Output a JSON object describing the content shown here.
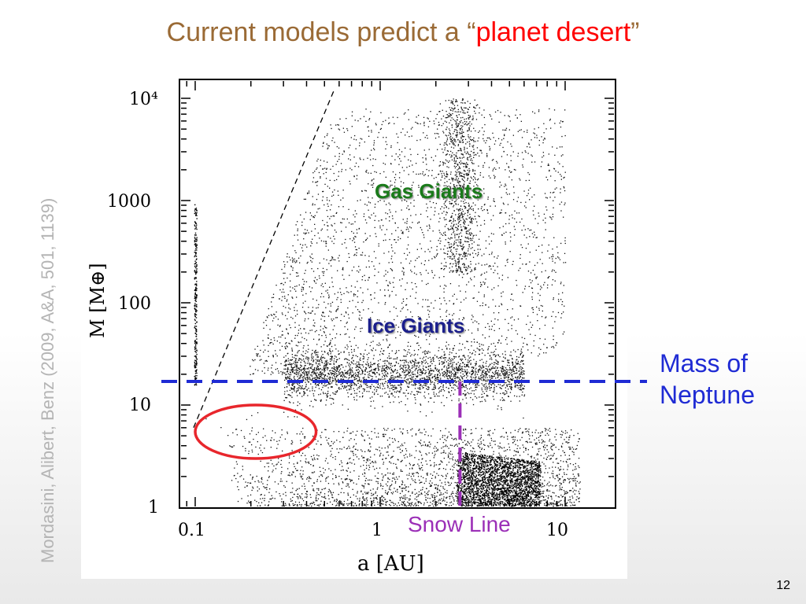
{
  "slide": {
    "title_prefix": "Current models predict a “",
    "title_highlight": "planet desert",
    "title_suffix": "”",
    "side_credit": "Mordasini, Alibert, Benz (2009, A&A, 501, 1139)",
    "page_number": "12"
  },
  "annotations": {
    "gas_giants": "Gas Giants",
    "ice_giants": "Ice Giants",
    "neptune_line1": "Mass of",
    "neptune_line2": "Neptune",
    "snow_line": "Snow Line",
    "colors": {
      "neptune_line": "#1f2bd4",
      "snow_line": "#9b2fb7",
      "desert_ellipse": "#e8262c",
      "gas_text": "#1a7a1a",
      "ice_text": "#1b1f8c",
      "title": "#9a6a35",
      "title_highlight": "#ff0000"
    }
  },
  "chart_data": {
    "type": "scatter",
    "title": "",
    "xlabel": "a [AU]",
    "ylabel": "M [M⊕]",
    "xscale": "log",
    "yscale": "log",
    "xlim": [
      0.08,
      20
    ],
    "ylim": [
      1,
      15000
    ],
    "x_ticks": [
      {
        "value": 0.1,
        "label": "0.1"
      },
      {
        "value": 1,
        "label": "1"
      },
      {
        "value": 10,
        "label": "10"
      }
    ],
    "y_ticks": [
      {
        "value": 1,
        "label": "1"
      },
      {
        "value": 10,
        "label": "10"
      },
      {
        "value": 100,
        "label": "100"
      },
      {
        "value": 1000,
        "label": "1000"
      },
      {
        "value": 10000,
        "label": "10⁴"
      }
    ],
    "reference_lines": [
      {
        "orientation": "horizontal",
        "value": 17,
        "style": "dashed",
        "label": "Mass of Neptune"
      },
      {
        "orientation": "vertical",
        "value": 2.7,
        "style": "dashed",
        "label": "Snow Line"
      }
    ],
    "highlight_region": {
      "shape": "ellipse",
      "x_range": [
        0.1,
        0.45
      ],
      "y_range": [
        3,
        10
      ]
    },
    "populations": [
      {
        "region": "hot-jupiters",
        "x_range": [
          0.11,
          0.6
        ],
        "y_range": [
          20,
          6000
        ],
        "density": "medium"
      },
      {
        "region": "gas-giants",
        "x_range": [
          0.6,
          10
        ],
        "y_range": [
          30,
          8000
        ],
        "density": "medium"
      },
      {
        "region": "ice-giants",
        "x_range": [
          0.3,
          6
        ],
        "y_range": [
          10,
          40
        ],
        "density": "high"
      },
      {
        "region": "low-mass",
        "x_range": [
          0.15,
          12
        ],
        "y_range": [
          1,
          6
        ],
        "density": "high"
      },
      {
        "region": "desert",
        "x_range": [
          0.11,
          0.5
        ],
        "y_range": [
          3,
          10
        ],
        "density": "sparse"
      }
    ]
  }
}
